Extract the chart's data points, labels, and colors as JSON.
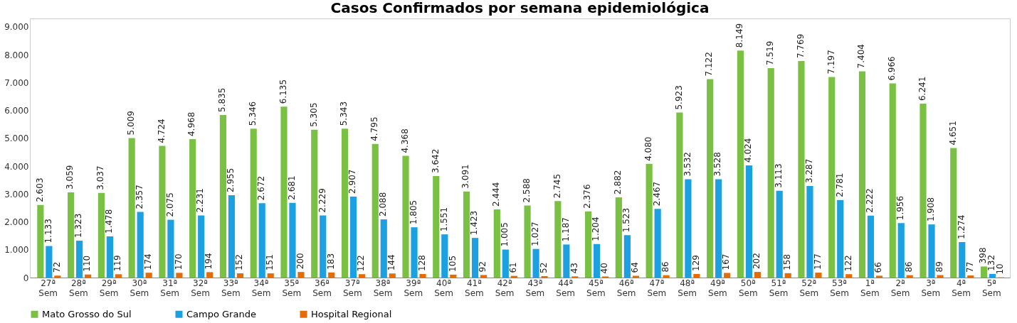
{
  "chart_data": {
    "type": "bar",
    "title": "Casos Confirmados por semana epidemiológica",
    "categories": [
      "27ª Sem",
      "28ª Sem",
      "29ª Sem",
      "30ª Sem",
      "31ª Sem",
      "32ª Sem",
      "33ª Sem",
      "34ª Sem",
      "35ª Sem",
      "36ª Sem",
      "37ª Sem",
      "38ª Sem",
      "39ª Sem",
      "40ª Sem",
      "41ª Sem",
      "42ª Sem",
      "43ª Sem",
      "44ª Sem",
      "45ª Sem",
      "46ª Sem",
      "47ª Sem",
      "48ª Sem",
      "49ª Sem",
      "50ª Sem",
      "51ª Sem",
      "52ª Sem",
      "53ª Sem",
      "1ª Sem",
      "2ª Sem",
      "3ª Sem",
      "4ª Sem",
      "5ª Sem"
    ],
    "series": [
      {
        "name": "Mato Grosso do Sul",
        "color": "#7ac143",
        "values": [
          2603,
          3059,
          3037,
          5009,
          4724,
          4968,
          5835,
          5346,
          6135,
          5305,
          5343,
          4795,
          4368,
          3642,
          3091,
          2444,
          2588,
          2745,
          2376,
          2882,
          4080,
          5923,
          7122,
          8149,
          7519,
          7769,
          7197,
          7404,
          6966,
          6241,
          4651,
          398
        ],
        "value_labels": [
          "2.603",
          "3.059",
          "3.037",
          "5.009",
          "4.724",
          "4.968",
          "5.835",
          "5.346",
          "6.135",
          "5.305",
          "5.343",
          "4.795",
          "4.368",
          "3.642",
          "3.091",
          "2.444",
          "2.588",
          "2.745",
          "2.376",
          "2.882",
          "4.080",
          "5.923",
          "7.122",
          "8.149",
          "7.519",
          "7.769",
          "7.197",
          "7.404",
          "6.966",
          "6.241",
          "4.651",
          "398"
        ]
      },
      {
        "name": "Campo Grande",
        "color": "#1ba1e2",
        "values": [
          1133,
          1323,
          1478,
          2357,
          2075,
          2231,
          2955,
          2672,
          2681,
          2229,
          2907,
          2088,
          1805,
          1551,
          1423,
          1005,
          1027,
          1187,
          1204,
          1523,
          2467,
          3532,
          3528,
          4024,
          3113,
          3287,
          2781,
          2222,
          1956,
          1908,
          1274,
          132
        ],
        "value_labels": [
          "1.133",
          "1.323",
          "1.478",
          "2.357",
          "2.075",
          "2.231",
          "2.955",
          "2.672",
          "2.681",
          "2.229",
          "2.907",
          "2.088",
          "1.805",
          "1.551",
          "1.423",
          "1.005",
          "1.027",
          "1.187",
          "1.204",
          "1.523",
          "2.467",
          "3.532",
          "3.528",
          "4.024",
          "3.113",
          "3.287",
          "2.781",
          "2.222",
          "1.956",
          "1.908",
          "1.274",
          "132"
        ]
      },
      {
        "name": "Hospital Regional",
        "color": "#e36c09",
        "values": [
          72,
          110,
          119,
          174,
          170,
          194,
          152,
          151,
          200,
          183,
          122,
          144,
          128,
          105,
          92,
          61,
          52,
          43,
          40,
          64,
          86,
          129,
          167,
          202,
          158,
          177,
          122,
          66,
          86,
          89,
          77,
          10
        ],
        "value_labels": [
          "72",
          "110",
          "119",
          "174",
          "170",
          "194",
          "152",
          "151",
          "200",
          "183",
          "122",
          "144",
          "128",
          "105",
          "92",
          "61",
          "52",
          "43",
          "40",
          "64",
          "86",
          "129",
          "167",
          "202",
          "158",
          "177",
          "122",
          "66",
          "86",
          "89",
          "77",
          "10"
        ]
      }
    ],
    "ylim": [
      0,
      9300
    ],
    "yticks": [
      0,
      {
        "value": 1000,
        "label": "1.000"
      },
      {
        "value": 2000,
        "label": "2.000"
      },
      {
        "value": 3000,
        "label": "3.000"
      },
      {
        "value": 4000,
        "label": "4.000"
      },
      {
        "value": 5000,
        "label": "5.000"
      },
      {
        "value": 6000,
        "label": "6.000"
      },
      {
        "value": 7000,
        "label": "7.000"
      },
      {
        "value": 8000,
        "label": "8.000"
      },
      {
        "value": 9000,
        "label": "9.000"
      }
    ],
    "legend": "bottom"
  }
}
